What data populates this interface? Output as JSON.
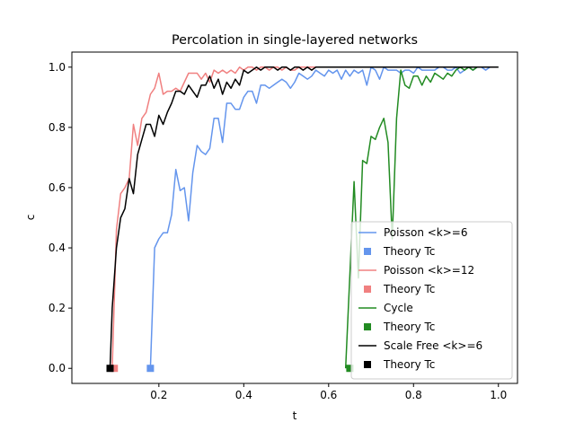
{
  "chart_data": {
    "type": "line",
    "title": "Percolation in single-layered networks",
    "xlabel": "t",
    "ylabel": "c",
    "xlim": [
      0.0,
      1.0
    ],
    "ylim": [
      -0.05,
      1.05
    ],
    "xticks": [
      0.2,
      0.4,
      0.6,
      0.8,
      1.0
    ],
    "xtick_labels": [
      "0.2",
      "0.4",
      "0.6",
      "0.8",
      "1.0"
    ],
    "yticks": [
      0.0,
      0.2,
      0.4,
      0.6,
      0.8,
      1.0
    ],
    "ytick_labels": [
      "0.0",
      "0.2",
      "0.4",
      "0.6",
      "0.8",
      "1.0"
    ],
    "grid": false,
    "legend_position": "lower-right",
    "series": [
      {
        "name": "Poisson <k>=6",
        "color": "#6495ed",
        "x": [
          0.18,
          0.19,
          0.2,
          0.21,
          0.22,
          0.23,
          0.24,
          0.25,
          0.26,
          0.27,
          0.28,
          0.29,
          0.3,
          0.31,
          0.32,
          0.33,
          0.34,
          0.35,
          0.36,
          0.37,
          0.38,
          0.39,
          0.4,
          0.41,
          0.42,
          0.43,
          0.44,
          0.45,
          0.46,
          0.47,
          0.48,
          0.49,
          0.5,
          0.51,
          0.52,
          0.53,
          0.54,
          0.55,
          0.56,
          0.57,
          0.58,
          0.59,
          0.6,
          0.61,
          0.62,
          0.63,
          0.64,
          0.65,
          0.66,
          0.67,
          0.68,
          0.69,
          0.7,
          0.71,
          0.72,
          0.73,
          0.74,
          0.75,
          0.76,
          0.77,
          0.78,
          0.79,
          0.8,
          0.81,
          0.82,
          0.83,
          0.84,
          0.85,
          0.86,
          0.87,
          0.88,
          0.89,
          0.9,
          0.91,
          0.92,
          0.93,
          0.94,
          0.95,
          0.96,
          0.97,
          0.98,
          0.99,
          1.0
        ],
        "y": [
          0.0,
          0.4,
          0.43,
          0.45,
          0.45,
          0.51,
          0.66,
          0.59,
          0.6,
          0.49,
          0.65,
          0.74,
          0.72,
          0.71,
          0.73,
          0.83,
          0.83,
          0.75,
          0.88,
          0.88,
          0.86,
          0.86,
          0.9,
          0.92,
          0.92,
          0.88,
          0.94,
          0.94,
          0.93,
          0.94,
          0.95,
          0.96,
          0.95,
          0.93,
          0.95,
          0.98,
          0.97,
          0.96,
          0.97,
          0.99,
          0.98,
          0.97,
          0.99,
          0.98,
          0.99,
          0.96,
          0.99,
          0.97,
          0.99,
          0.98,
          0.99,
          0.94,
          1.0,
          0.99,
          0.96,
          1.0,
          0.99,
          0.99,
          0.99,
          0.98,
          0.99,
          0.99,
          0.98,
          1.0,
          0.99,
          0.99,
          0.99,
          0.99,
          1.0,
          1.0,
          0.99,
          0.99,
          1.0,
          0.98,
          0.99,
          1.0,
          0.99,
          1.0,
          1.0,
          0.99,
          1.0,
          1.0,
          1.0
        ]
      },
      {
        "name": "Poisson <k>=12",
        "color": "#f08080",
        "x": [
          0.09,
          0.1,
          0.11,
          0.12,
          0.13,
          0.14,
          0.15,
          0.16,
          0.17,
          0.18,
          0.19,
          0.2,
          0.21,
          0.22,
          0.23,
          0.24,
          0.25,
          0.26,
          0.27,
          0.28,
          0.29,
          0.3,
          0.31,
          0.32,
          0.33,
          0.34,
          0.35,
          0.36,
          0.37,
          0.38,
          0.39,
          0.4,
          0.41,
          0.42,
          0.43,
          0.44,
          0.45,
          0.46,
          0.47,
          0.48,
          0.49,
          0.5,
          0.51,
          0.52,
          0.53,
          0.54,
          0.55,
          0.56,
          0.57,
          0.58,
          0.59,
          0.6,
          0.62,
          0.64,
          0.66,
          0.68,
          0.7,
          0.75,
          0.8,
          0.85,
          0.9,
          0.95,
          1.0
        ],
        "y": [
          0.0,
          0.46,
          0.58,
          0.6,
          0.63,
          0.81,
          0.74,
          0.83,
          0.85,
          0.91,
          0.93,
          0.98,
          0.91,
          0.92,
          0.92,
          0.93,
          0.92,
          0.95,
          0.98,
          0.98,
          0.98,
          0.96,
          0.98,
          0.95,
          0.99,
          0.98,
          0.99,
          0.98,
          0.99,
          0.98,
          1.0,
          0.99,
          1.0,
          1.0,
          0.99,
          1.0,
          1.0,
          0.99,
          1.0,
          1.0,
          0.99,
          1.0,
          0.99,
          0.99,
          1.0,
          1.0,
          1.0,
          1.0,
          1.0,
          1.0,
          1.0,
          1.0,
          1.0,
          1.0,
          1.0,
          1.0,
          1.0,
          1.0,
          1.0,
          1.0,
          1.0,
          1.0,
          1.0
        ]
      },
      {
        "name": "Cycle",
        "color": "#228b22",
        "x": [
          0.64,
          0.66,
          0.67,
          0.68,
          0.69,
          0.7,
          0.71,
          0.72,
          0.73,
          0.74,
          0.75,
          0.76,
          0.77,
          0.78,
          0.79,
          0.8,
          0.81,
          0.82,
          0.83,
          0.84,
          0.85,
          0.86,
          0.87,
          0.88,
          0.89,
          0.9,
          0.91,
          0.92,
          0.93,
          0.94,
          0.95,
          0.96,
          0.97,
          0.98,
          0.99,
          1.0
        ],
        "y": [
          0.0,
          0.62,
          0.3,
          0.69,
          0.68,
          0.77,
          0.76,
          0.8,
          0.83,
          0.75,
          0.43,
          0.83,
          0.99,
          0.94,
          0.93,
          0.97,
          0.97,
          0.94,
          0.97,
          0.95,
          0.98,
          0.97,
          0.96,
          0.98,
          0.97,
          0.99,
          1.0,
          0.99,
          1.0,
          0.99,
          1.0,
          1.0,
          1.0,
          1.0,
          1.0,
          1.0
        ]
      },
      {
        "name": "Scale Free <k>=6",
        "color": "#000000",
        "x": [
          0.085,
          0.09,
          0.1,
          0.11,
          0.12,
          0.13,
          0.14,
          0.15,
          0.16,
          0.17,
          0.18,
          0.19,
          0.2,
          0.21,
          0.22,
          0.23,
          0.24,
          0.25,
          0.26,
          0.27,
          0.28,
          0.29,
          0.3,
          0.31,
          0.32,
          0.33,
          0.34,
          0.35,
          0.36,
          0.37,
          0.38,
          0.39,
          0.4,
          0.41,
          0.42,
          0.43,
          0.44,
          0.45,
          0.46,
          0.47,
          0.48,
          0.49,
          0.5,
          0.51,
          0.52,
          0.53,
          0.54,
          0.55,
          0.56,
          0.57,
          0.58,
          0.59,
          0.6,
          0.62,
          0.64,
          0.66,
          0.68,
          0.7,
          0.75,
          0.8,
          0.85,
          0.9,
          0.95,
          1.0
        ],
        "y": [
          0.0,
          0.2,
          0.4,
          0.5,
          0.53,
          0.63,
          0.58,
          0.71,
          0.76,
          0.81,
          0.81,
          0.77,
          0.84,
          0.81,
          0.85,
          0.88,
          0.92,
          0.92,
          0.91,
          0.94,
          0.92,
          0.9,
          0.94,
          0.94,
          0.97,
          0.93,
          0.96,
          0.91,
          0.95,
          0.93,
          0.96,
          0.94,
          0.99,
          0.98,
          0.99,
          1.0,
          0.99,
          1.0,
          1.0,
          1.0,
          0.99,
          1.0,
          1.0,
          0.99,
          1.0,
          1.0,
          0.99,
          1.0,
          0.99,
          1.0,
          1.0,
          1.0,
          1.0,
          1.0,
          1.0,
          1.0,
          1.0,
          1.0,
          1.0,
          1.0,
          1.0,
          1.0,
          1.0,
          1.0
        ]
      }
    ],
    "markers": [
      {
        "name": "Theory Tc",
        "color": "#6495ed",
        "x": 0.18,
        "y": 0.0
      },
      {
        "name": "Theory Tc",
        "color": "#f08080",
        "x": 0.095,
        "y": 0.0
      },
      {
        "name": "Theory Tc",
        "color": "#228b22",
        "x": 0.65,
        "y": 0.0
      },
      {
        "name": "Theory Tc",
        "color": "#000000",
        "x": 0.085,
        "y": 0.0
      }
    ],
    "legend": [
      {
        "label": "Poisson <k>=6",
        "kind": "line",
        "color": "#6495ed"
      },
      {
        "label": "Theory Tc",
        "kind": "marker",
        "color": "#6495ed"
      },
      {
        "label": "Poisson <k>=12",
        "kind": "line",
        "color": "#f08080"
      },
      {
        "label": "Theory Tc",
        "kind": "marker",
        "color": "#f08080"
      },
      {
        "label": "Cycle",
        "kind": "line",
        "color": "#228b22"
      },
      {
        "label": "Theory Tc",
        "kind": "marker",
        "color": "#228b22"
      },
      {
        "label": "Scale Free <k>=6",
        "kind": "line",
        "color": "#000000"
      },
      {
        "label": "Theory Tc",
        "kind": "marker",
        "color": "#000000"
      }
    ]
  }
}
